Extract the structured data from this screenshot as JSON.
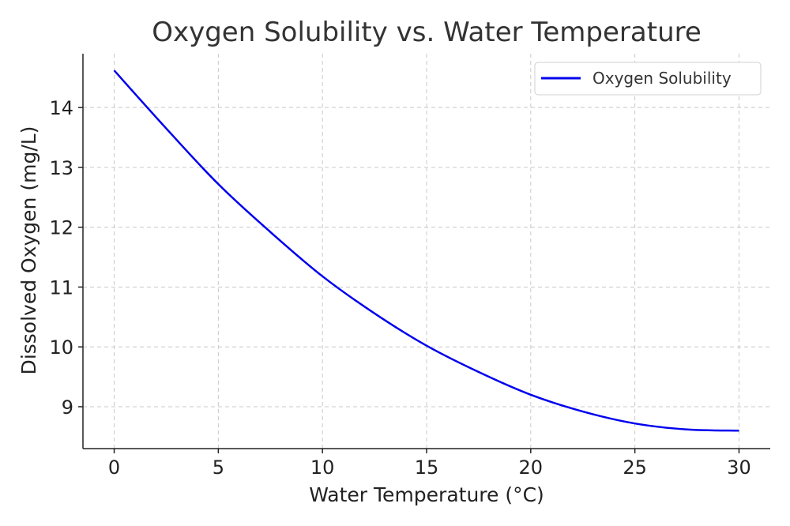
{
  "chart_data": {
    "type": "line",
    "title": "Oxygen Solubility vs. Water Temperature",
    "xlabel": "Water Temperature (°C)",
    "ylabel": "Dissolved Oxygen (mg/L)",
    "xlim": [
      -1.5,
      31.5
    ],
    "ylim": [
      8.3,
      14.9
    ],
    "xticks": [
      0,
      5,
      10,
      15,
      20,
      25,
      30
    ],
    "yticks": [
      9,
      10,
      11,
      12,
      13,
      14
    ],
    "grid": true,
    "legend_position": "top-right",
    "series": [
      {
        "name": "Oxygen Solubility",
        "color": "#0000ee",
        "x": [
          0,
          2.5,
          5,
          7.5,
          10,
          12.5,
          15,
          17.5,
          20,
          22.5,
          25,
          27.5,
          30
        ],
        "y": [
          14.62,
          13.65,
          12.72,
          11.92,
          11.18,
          10.56,
          10.02,
          9.58,
          9.2,
          8.92,
          8.72,
          8.62,
          8.6
        ]
      }
    ]
  }
}
